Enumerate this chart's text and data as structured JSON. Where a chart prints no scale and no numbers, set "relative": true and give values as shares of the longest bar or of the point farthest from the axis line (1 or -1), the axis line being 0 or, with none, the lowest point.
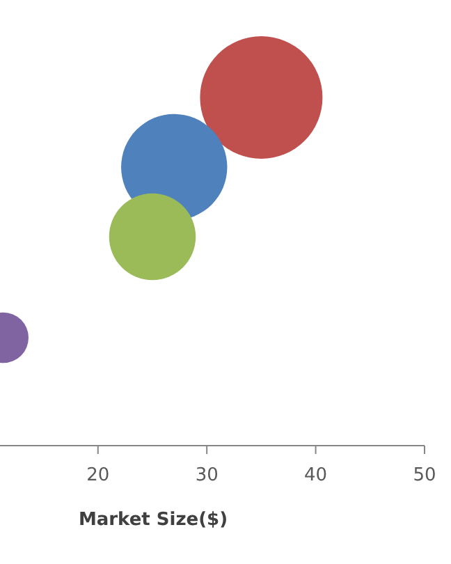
{
  "chart_data": {
    "type": "bubble",
    "xlabel": "Market Size($)",
    "relative": true,
    "tick_labels": "x",
    "x": [
      35,
      27,
      25,
      11.3
    ],
    "values": [
      1,
      0.8,
      0.6,
      0.31
    ],
    "sizes": [
      1,
      0.75,
      0.5,
      0.17
    ],
    "colors": [
      "#c0504d",
      "#4f81bd",
      "#9bbb59",
      "#8064a2"
    ],
    "xlim": [
      11,
      50
    ],
    "xticks": [
      20,
      30,
      40,
      50
    ]
  }
}
